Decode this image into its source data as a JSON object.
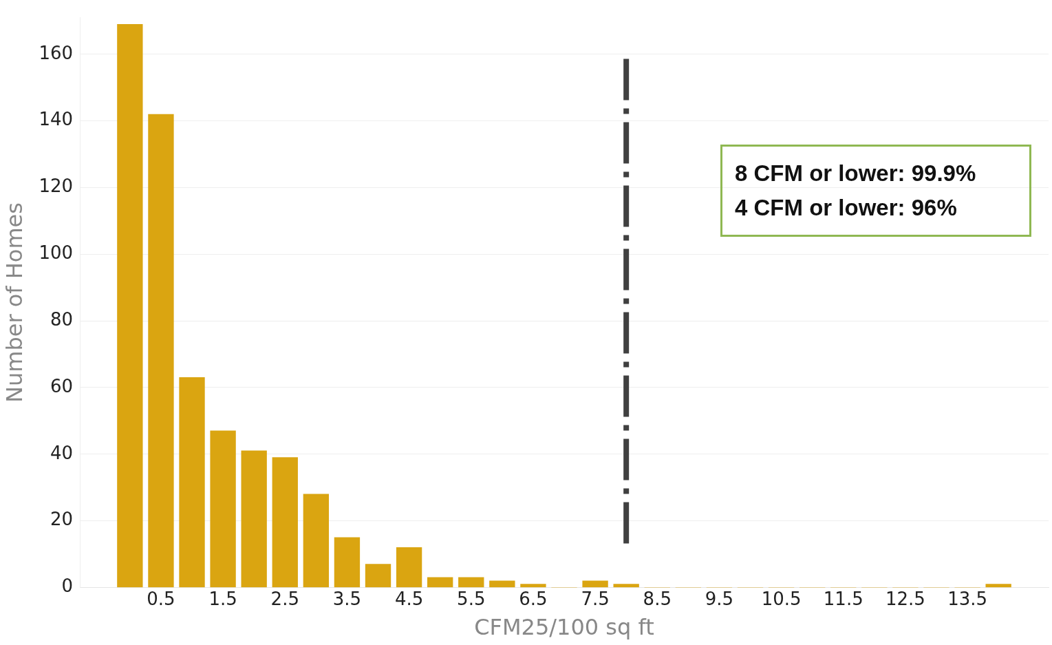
{
  "chart_data": {
    "type": "bar",
    "xlabel": "CFM25/100 sq ft",
    "ylabel": "Number of Homes",
    "x": [
      0,
      0.5,
      1,
      1.5,
      2,
      2.5,
      3,
      3.5,
      4,
      4.5,
      5,
      5.5,
      6,
      6.5,
      7,
      7.5,
      8,
      8.5,
      9,
      9.5,
      10,
      10.5,
      11,
      11.5,
      12,
      12.5,
      13,
      13.5,
      14
    ],
    "values": [
      169,
      142,
      63,
      47,
      41,
      39,
      28,
      15,
      7,
      12,
      3,
      3,
      2,
      1,
      0,
      2,
      1,
      0,
      0,
      0,
      0,
      0,
      0,
      0,
      0,
      0,
      0,
      0,
      1
    ],
    "color": "#daa511",
    "xlim": [
      -0.25,
      14.25
    ],
    "xticks": [
      0.5,
      1.5,
      2.5,
      3.5,
      4.5,
      5.5,
      6.5,
      7.5,
      8.5,
      9.5,
      10.5,
      11.5,
      12.5,
      13.5
    ],
    "ylim": [
      0,
      171
    ],
    "yticks": [
      0,
      20,
      40,
      60,
      80,
      100,
      120,
      140,
      160
    ],
    "grid": "y",
    "ref_lines": [
      {
        "axis": "x",
        "value": 8,
        "color": "#404040",
        "line_style": "dashdot"
      }
    ],
    "annotations": [
      "8 CFM or lower: 99.9%",
      "4 CFM or lower: 96%"
    ]
  }
}
